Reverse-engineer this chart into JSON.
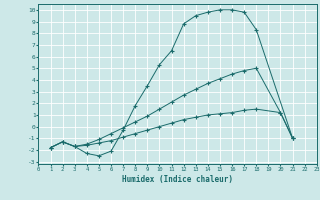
{
  "xlabel": "Humidex (Indice chaleur)",
  "xlim": [
    0,
    23
  ],
  "ylim": [
    -3.2,
    10.5
  ],
  "xticks": [
    0,
    1,
    2,
    3,
    4,
    5,
    6,
    7,
    8,
    9,
    10,
    11,
    12,
    13,
    14,
    15,
    16,
    17,
    18,
    19,
    20,
    21,
    22,
    23
  ],
  "yticks": [
    -3,
    -2,
    -1,
    0,
    1,
    2,
    3,
    4,
    5,
    6,
    7,
    8,
    9,
    10
  ],
  "bg_color": "#cde8e8",
  "line_color": "#1a6b6b",
  "grid_color": "#ffffff",
  "line1_x": [
    1,
    2,
    3,
    4,
    5,
    6,
    7,
    8,
    9,
    10,
    11,
    12,
    13,
    14,
    15,
    16,
    17,
    18,
    21
  ],
  "line1_y": [
    -1.8,
    -1.3,
    -1.7,
    -2.3,
    -2.5,
    -2.1,
    -0.3,
    1.8,
    3.5,
    5.3,
    6.5,
    8.8,
    9.5,
    9.8,
    10.0,
    10.0,
    9.8,
    8.3,
    -1.0
  ],
  "line2_x": [
    1,
    2,
    3,
    4,
    5,
    6,
    7,
    8,
    9,
    10,
    11,
    12,
    13,
    14,
    15,
    16,
    17,
    18,
    20,
    21
  ],
  "line2_y": [
    -1.8,
    -1.3,
    -1.7,
    -1.5,
    -1.1,
    -0.6,
    -0.1,
    0.4,
    0.9,
    1.5,
    2.1,
    2.7,
    3.2,
    3.7,
    4.1,
    4.5,
    4.8,
    5.0,
    1.2,
    -1.0
  ],
  "line3_x": [
    1,
    2,
    3,
    4,
    5,
    6,
    7,
    8,
    9,
    10,
    11,
    12,
    13,
    14,
    15,
    16,
    17,
    18,
    20,
    21
  ],
  "line3_y": [
    -1.8,
    -1.3,
    -1.7,
    -1.6,
    -1.4,
    -1.2,
    -0.9,
    -0.6,
    -0.3,
    0.0,
    0.3,
    0.6,
    0.8,
    1.0,
    1.1,
    1.2,
    1.4,
    1.5,
    1.2,
    -1.0
  ]
}
